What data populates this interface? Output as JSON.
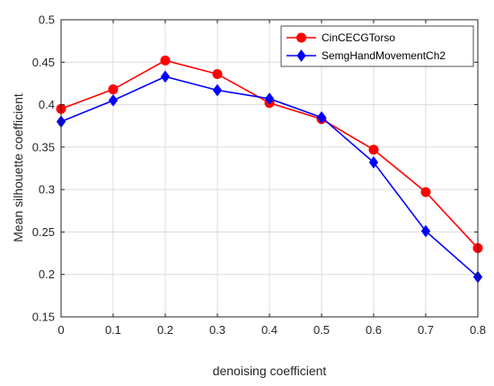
{
  "chart_data": {
    "type": "line",
    "xlabel": "denoising coefficient",
    "ylabel": "Mean silhouette coefficient",
    "xlim": [
      0,
      0.8
    ],
    "ylim": [
      0.15,
      0.5
    ],
    "x_ticks": [
      "0",
      "0.1",
      "0.2",
      "0.3",
      "0.4",
      "0.5",
      "0.6",
      "0.7",
      "0.8"
    ],
    "y_ticks": [
      "0.15",
      "0.2",
      "0.25",
      "0.3",
      "0.35",
      "0.4",
      "0.45",
      "0.5"
    ],
    "x": [
      0,
      0.1,
      0.2,
      0.3,
      0.4,
      0.5,
      0.6,
      0.7,
      0.8
    ],
    "grid": true,
    "legend_position": "top-right",
    "series": [
      {
        "name": "CinCECGTorso",
        "color": "#ff0000",
        "marker": "circle",
        "values": [
          0.395,
          0.418,
          0.452,
          0.436,
          0.402,
          0.383,
          0.347,
          0.297,
          0.231
        ]
      },
      {
        "name": "SemgHandMovementCh2",
        "color": "#0000ff",
        "marker": "diamond",
        "values": [
          0.38,
          0.405,
          0.433,
          0.417,
          0.407,
          0.385,
          0.332,
          0.251,
          0.197
        ]
      }
    ]
  }
}
